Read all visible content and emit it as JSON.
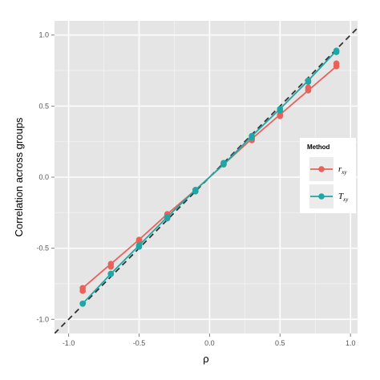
{
  "chart_data": {
    "type": "line",
    "xlabel": "ρ",
    "ylabel": "Correlation across groups",
    "xlim": [
      -1.1,
      1.05
    ],
    "ylim": [
      -1.1,
      1.1
    ],
    "x_ticks": [
      -1.0,
      -0.5,
      0.0,
      0.5,
      1.0
    ],
    "x_tick_labels": [
      "-1.0",
      "-0.5",
      "0.0",
      "0.5",
      "1.0"
    ],
    "y_ticks": [
      -1.0,
      -0.5,
      0.0,
      0.5,
      1.0
    ],
    "y_tick_labels": [
      "-1.0",
      "-0.5",
      "0.0",
      "0.5",
      "1.0"
    ],
    "grid": true,
    "reference_line": {
      "style": "dashed",
      "slope": 1,
      "intercept": 0,
      "color": "#333333"
    },
    "legend": {
      "title": "Method",
      "placement": "right"
    },
    "series": [
      {
        "name": "r_xy",
        "label_main": "r",
        "label_sub": "xy",
        "color": "#E8625A",
        "x": [
          -0.9,
          -0.7,
          -0.5,
          -0.3,
          -0.1,
          0.1,
          0.3,
          0.5,
          0.7,
          0.9
        ],
        "y": [
          -0.78,
          -0.61,
          -0.44,
          -0.26,
          -0.09,
          0.09,
          0.27,
          0.44,
          0.61,
          0.78
        ],
        "y_secondary": [
          -0.8,
          -0.63,
          -0.45,
          -0.27,
          -0.1,
          0.1,
          0.26,
          0.43,
          0.63,
          0.8
        ]
      },
      {
        "name": "T_xy",
        "label_main": "T",
        "label_sub": "xy",
        "color": "#1FA6A6",
        "x": [
          -0.9,
          -0.7,
          -0.5,
          -0.3,
          -0.1,
          0.1,
          0.3,
          0.5,
          0.7,
          0.9
        ],
        "y": [
          -0.89,
          -0.68,
          -0.48,
          -0.28,
          -0.09,
          0.09,
          0.29,
          0.48,
          0.68,
          0.89
        ],
        "y_secondary": [
          -0.89,
          -0.68,
          -0.49,
          -0.29,
          -0.1,
          0.1,
          0.28,
          0.47,
          0.67,
          0.88
        ]
      }
    ]
  }
}
